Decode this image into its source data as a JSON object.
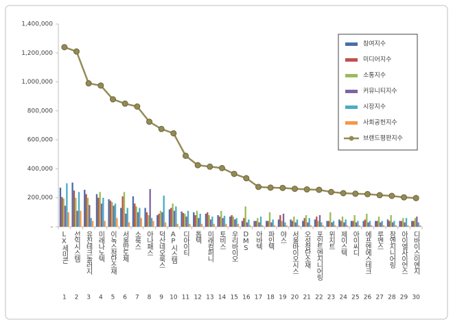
{
  "chart_data": {
    "type": "bar-line",
    "categories": [
      "LX세미콘",
      "선익시스템",
      "유진테크놀러지",
      "미래나노텍",
      "이녹스첨단소재",
      "서울반도체",
      "소룩스",
      "아나패스",
      "덕산네오룩스",
      "AP시스템",
      "디아이티",
      "톱텍",
      "미래컴퍼니",
      "토비스",
      "우리바이오",
      "DMS",
      "아바텍",
      "파인텍",
      "야스",
      "서울바이오시스",
      "오성첨단소재",
      "포인트엔지니어링",
      "위지트",
      "제이스텍",
      "아이씨디",
      "에프엔에스테크",
      "루멘스",
      "참엔지니어링",
      "아이엘사이언스",
      "디바이스이엔지"
    ],
    "category_numbers": [
      "1",
      "2",
      "3",
      "4",
      "5",
      "6",
      "7",
      "8",
      "9",
      "10",
      "11",
      "12",
      "13",
      "14",
      "15",
      "16",
      "17",
      "18",
      "19",
      "20",
      "21",
      "22",
      "23",
      "24",
      "25",
      "26",
      "27",
      "28",
      "29",
      "30"
    ],
    "series": [
      {
        "name": "참여지수",
        "color": "#4a6fa5",
        "values": [
          270000,
          305000,
          255000,
          225000,
          190000,
          130000,
          210000,
          130000,
          80000,
          120000,
          105000,
          100000,
          90000,
          80000,
          70000,
          40000,
          40000,
          40000,
          50000,
          50000,
          40000,
          50000,
          40000,
          50000,
          40000,
          40000,
          40000,
          50000,
          40000,
          40000
        ]
      },
      {
        "name": "미디어지수",
        "color": "#c0504d",
        "values": [
          205000,
          250000,
          225000,
          200000,
          180000,
          210000,
          160000,
          100000,
          90000,
          130000,
          95000,
          80000,
          100000,
          70000,
          80000,
          60000,
          40000,
          40000,
          80000,
          40000,
          60000,
          70000,
          40000,
          40000,
          40000,
          50000,
          40000,
          40000,
          40000,
          40000
        ]
      },
      {
        "name": "소통지수",
        "color": "#9bbb59",
        "values": [
          195000,
          200000,
          200000,
          240000,
          170000,
          240000,
          140000,
          80000,
          110000,
          160000,
          90000,
          110000,
          80000,
          110000,
          70000,
          140000,
          60000,
          100000,
          40000,
          70000,
          80000,
          40000,
          100000,
          70000,
          80000,
          90000,
          70000,
          80000,
          60000,
          60000
        ]
      },
      {
        "name": "커뮤니티지수",
        "color": "#8064a2",
        "values": [
          145000,
          110000,
          150000,
          160000,
          145000,
          90000,
          100000,
          260000,
          100000,
          110000,
          70000,
          60000,
          50000,
          60000,
          50000,
          30000,
          30000,
          30000,
          90000,
          30000,
          30000,
          80000,
          30000,
          30000,
          30000,
          30000,
          30000,
          30000,
          30000,
          70000
        ]
      },
      {
        "name": "시장지수",
        "color": "#4bacc6",
        "values": [
          300000,
          240000,
          60000,
          200000,
          160000,
          130000,
          130000,
          60000,
          215000,
          140000,
          110000,
          90000,
          70000,
          75000,
          60000,
          50000,
          70000,
          50000,
          30000,
          50000,
          60000,
          30000,
          40000,
          50000,
          40000,
          40000,
          40000,
          40000,
          60000,
          30000
        ]
      },
      {
        "name": "사회공헌지수",
        "color": "#f79646",
        "values": [
          100000,
          110000,
          40000,
          40000,
          60000,
          30000,
          60000,
          40000,
          30000,
          20000,
          20000,
          20000,
          20000,
          20000,
          20000,
          10000,
          10000,
          10000,
          10000,
          10000,
          10000,
          10000,
          10000,
          10000,
          10000,
          10000,
          10000,
          10000,
          10000,
          10000
        ]
      },
      {
        "name": "브랜드평판지수",
        "color": "#948a54",
        "type": "line",
        "values": [
          1240000,
          1210000,
          990000,
          975000,
          880000,
          850000,
          830000,
          725000,
          675000,
          645000,
          490000,
          425000,
          415000,
          405000,
          365000,
          335000,
          275000,
          270000,
          268000,
          262000,
          258000,
          255000,
          240000,
          232000,
          228000,
          225000,
          218000,
          213000,
          203000,
          198000
        ]
      }
    ],
    "ylim": [
      0,
      1400000
    ],
    "yticks": [
      {
        "value": 0,
        "label": "-"
      },
      {
        "value": 200000,
        "label": "200,000"
      },
      {
        "value": 400000,
        "label": "400,000"
      },
      {
        "value": 600000,
        "label": "600,000"
      },
      {
        "value": 800000,
        "label": "800,000"
      },
      {
        "value": 1000000,
        "label": "1,000,000"
      },
      {
        "value": 1200000,
        "label": "1,200,000"
      },
      {
        "value": 1400000,
        "label": "1,400,000"
      }
    ],
    "grid": false,
    "legend": "upper right"
  }
}
